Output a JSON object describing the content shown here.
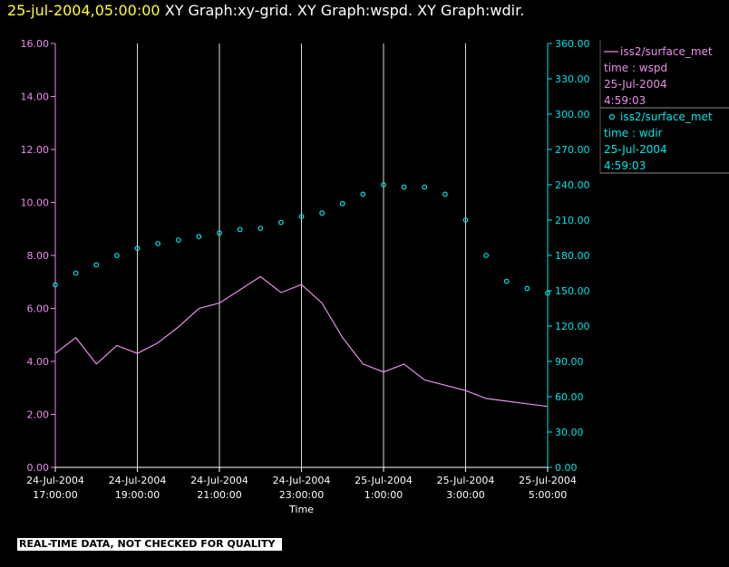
{
  "header": {
    "timestamp": "25-jul-2004,05:00:00",
    "graph_titles": "XY Graph:xy-grid.  XY Graph:wspd.  XY Graph:wdir."
  },
  "colors": {
    "background": "#000000",
    "wspd": "#e98ee9",
    "wdir": "#00e5e5",
    "grid": "#d8d8d8",
    "axis_text": "#ffffff",
    "timestamp": "#ffff33"
  },
  "legend": [
    {
      "marker": "line",
      "lines": [
        "iss2/surface_met",
        "time : wspd",
        "25-Jul-2004",
        "4:59:03"
      ]
    },
    {
      "marker": "circle",
      "lines": [
        "iss2/surface_met",
        "time : wdir",
        "25-Jul-2004",
        "4:59:03"
      ]
    }
  ],
  "disclaimer": "REAL-TIME DATA, NOT CHECKED FOR QUALITY",
  "chart_data": {
    "type": "line",
    "xlabel": "Time",
    "x_ticks": [
      {
        "date": "24-Jul-2004",
        "time": "17:00:00",
        "hour": 17
      },
      {
        "date": "24-Jul-2004",
        "time": "19:00:00",
        "hour": 19
      },
      {
        "date": "24-Jul-2004",
        "time": "21:00:00",
        "hour": 21
      },
      {
        "date": "24-Jul-2004",
        "time": "23:00:00",
        "hour": 23
      },
      {
        "date": "25-Jul-2004",
        "time": "1:00:00",
        "hour": 25
      },
      {
        "date": "25-Jul-2004",
        "time": "3:00:00",
        "hour": 27
      },
      {
        "date": "25-Jul-2004",
        "time": "5:00:00",
        "hour": 29
      }
    ],
    "xlim": [
      17,
      29
    ],
    "grid": "vertical",
    "left_axis": {
      "ylim": [
        0,
        16
      ],
      "ticks": [
        "0.00",
        "2.00",
        "4.00",
        "6.00",
        "8.00",
        "10.00",
        "12.00",
        "14.00",
        "16.00"
      ]
    },
    "right_axis": {
      "ylim": [
        0,
        360
      ],
      "ticks": [
        "0.00",
        "30.00",
        "60.00",
        "90.00",
        "120.00",
        "150.00",
        "180.00",
        "210.00",
        "240.00",
        "270.00",
        "300.00",
        "330.00",
        "360.00"
      ]
    },
    "series": [
      {
        "name": "iss2/surface_met time : wspd",
        "axis": "left",
        "style": "line",
        "x": [
          17,
          17.5,
          18,
          18.5,
          19,
          19.5,
          20,
          20.5,
          21,
          21.5,
          22,
          22.5,
          23,
          23.5,
          24,
          24.5,
          25,
          25.5,
          26,
          26.5,
          27,
          27.5,
          28,
          28.5,
          29
        ],
        "y": [
          4.3,
          4.9,
          3.9,
          4.6,
          4.3,
          4.7,
          5.3,
          6.0,
          6.2,
          6.7,
          7.2,
          6.6,
          6.9,
          6.2,
          4.9,
          3.9,
          3.6,
          3.9,
          3.3,
          3.1,
          2.9,
          2.6,
          2.5,
          2.4,
          2.3
        ]
      },
      {
        "name": "iss2/surface_met time : wdir",
        "axis": "right",
        "style": "scatter",
        "x": [
          17,
          17.5,
          18,
          18.5,
          19,
          19.5,
          20,
          20.5,
          21,
          21.5,
          22,
          22.5,
          23,
          23.5,
          24,
          24.5,
          25,
          25.5,
          26,
          26.5,
          27,
          27.5,
          28,
          28.5,
          29
        ],
        "y": [
          155,
          165,
          172,
          180,
          186,
          190,
          193,
          196,
          199,
          202,
          203,
          208,
          213,
          216,
          224,
          232,
          240,
          238,
          238,
          232,
          210,
          180,
          158,
          152,
          148
        ]
      }
    ]
  }
}
